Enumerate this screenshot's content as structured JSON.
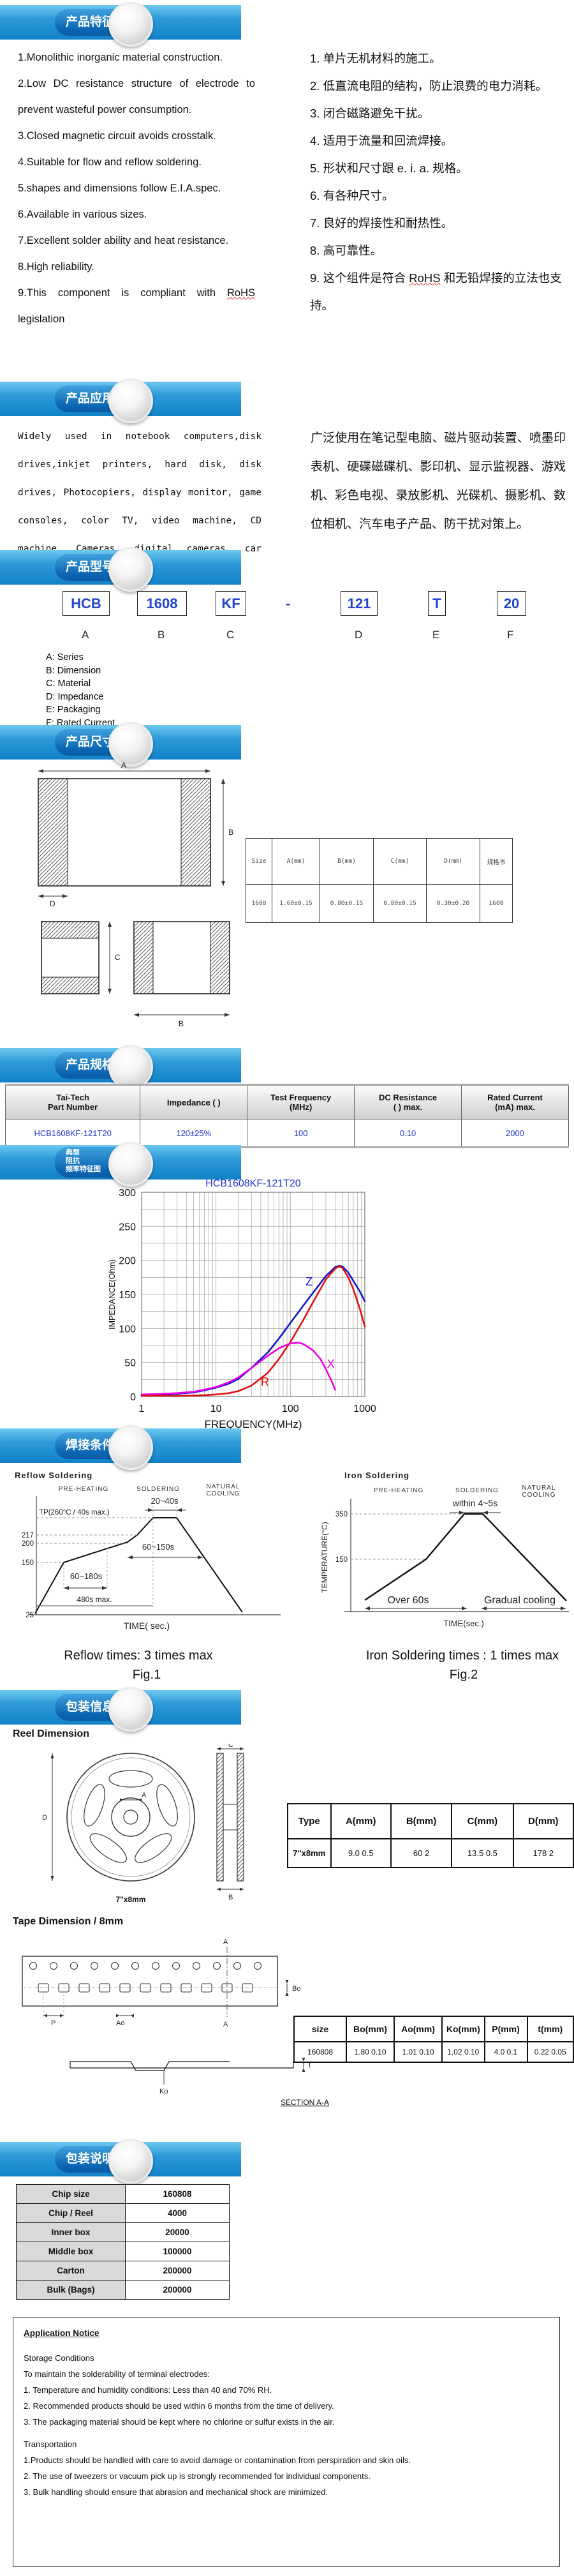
{
  "colors": {
    "strip_blue": "#1182c8",
    "pill_blue": "#0b66b4",
    "value_blue": "#2233cc",
    "curve_z": "#1414cc",
    "curve_r": "#dd1111",
    "curve_x": "#e800e8"
  },
  "sections": {
    "features": {
      "badge": "产品特征",
      "en": [
        "1.Monolithic inorganic material construction.",
        "2.Low DC resistance structure of electrode to prevent wasteful power consumption.",
        "3.Closed magnetic circuit avoids crosstalk.",
        "4.Suitable for flow and reflow soldering.",
        "5.shapes and dimensions follow E.I.A.spec.",
        "6.Available in various sizes.",
        "7.Excellent solder ability and heat resistance.",
        "8.High reliability."
      ],
      "en9": {
        "prefix": "9.This component is compliant with",
        "rohs": "RoHS",
        "suffix": "legislation"
      },
      "zh": [
        "1. 单片无机材料的施工。",
        "2. 低直流电阻的结构，防止浪费的电力消耗。",
        "3. 闭合磁路避免干扰。",
        "4. 适用于流量和回流焊接。",
        "5. 形状和尺寸跟 e. i. a. 规格。",
        "6. 有各种尺寸。",
        "7. 良好的焊接性和耐热性。",
        "8. 高可靠性。"
      ],
      "zh9": {
        "prefix": "9. 这个组件是符合",
        "rohs": "RoHS",
        "suffix": "和无铅焊接的立法也支持。"
      }
    },
    "application": {
      "badge": "产品应用",
      "en": "Widely used in notebook computers,disk drives,inkjet printers, hard disk, disk drives, Photocopiers, display monitor, game consoles, color TV, video machine, CD machine, Cameras, digital cameras, car electronics, anti interference measures.",
      "zh": "广泛使用在笔记型电脑、磁片驱动装置、喷墨印表机、硬碟磁碟机、影印机、显示监视器、游戏机、彩色电视、录放影机、光碟机、摄影机、数位相机、汽车电子产品、防干扰对策上。"
    },
    "part_number": {
      "badge": "产品型号",
      "boxes": [
        "HCB",
        "1608",
        "KF",
        "-",
        "121",
        "T",
        "20"
      ],
      "letters": [
        "A",
        "B",
        "C",
        "D",
        "E",
        "F"
      ],
      "legend": [
        "A: Series",
        "B: Dimension",
        "C: Material",
        "D: Impedance",
        "E: Packaging",
        "F: Rated Current"
      ]
    },
    "dimensions": {
      "badge": "产品尺寸",
      "labels": {
        "a": "A",
        "b": "B",
        "c": "C",
        "d": "D"
      },
      "table": {
        "headers": [
          "Size",
          "A(mm)",
          "B(mm)",
          "C(mm)",
          "D(mm)",
          "规格书"
        ],
        "rows": [
          [
            "1608",
            "1.60±0.15",
            "0.80±0.15",
            "0.80±0.15",
            "0.30±0.20",
            "1608"
          ]
        ]
      }
    },
    "specs": {
      "badge": "产品规格",
      "table": {
        "headers": [
          [
            "Tai-Tech",
            "Part Number"
          ],
          [
            "Impedance (  )",
            ""
          ],
          [
            "Test Frequency",
            "(MHz)"
          ],
          [
            "DC Resistance",
            "(  ) max."
          ],
          [
            "Rated Current",
            "(mA) max."
          ]
        ],
        "rows": [
          [
            "HCB1608KF-121T20",
            "120±25%",
            "100",
            "0.10",
            "2000"
          ]
        ]
      }
    },
    "impedance": {
      "badge_lines": [
        "典型",
        "阻抗",
        "频率特征图"
      ]
    },
    "soldering": {
      "badge": "焊接条件",
      "reflow": {
        "title": "Reflow Soldering",
        "zone1": "PRE-HEATING",
        "zone2": "SOLDERING",
        "zone3a": "NATURAL",
        "zone3b": "COOLING",
        "peak_time": "20~40s",
        "tp": "TP(260°C / 40s max.)",
        "t217": "217",
        "t200": "200",
        "t150": "150",
        "t25": "25",
        "range_mid": "60~150s",
        "range_pre": "60~180s",
        "range_total": "480s max.",
        "xlabel": "TIME( sec.)",
        "caption": "Reflow times: 3 times max",
        "fig": "Fig.1"
      },
      "iron": {
        "title": "Iron Soldering",
        "zone1": "PRE-HEATING",
        "zone2": "SOLDERING",
        "zone3a": "NATURAL",
        "zone3b": "COOLING",
        "peak_time": "within 4~5s",
        "t350": "350",
        "t150": "150",
        "ylabel": "TEMPERATURE(°C)",
        "range_pre": "Over 60s",
        "range_cool": "Gradual  cooling",
        "xlabel": "TIME(sec.)",
        "caption": "Iron Soldering times : 1 times max",
        "fig": "Fig.2"
      }
    },
    "packaging_info": {
      "badge": "包装信息",
      "reel": {
        "heading": "Reel Dimension",
        "caption": "7\"x8mm",
        "dim_a": "A",
        "dim_b": "B",
        "dim_c": "C",
        "dim_d": "D",
        "table": {
          "headers": [
            "Type",
            "A(mm)",
            "B(mm)",
            "C(mm)",
            "D(mm)"
          ],
          "rows": [
            [
              "7\"x8mm",
              "9.0  0.5",
              "60  2",
              "13.5  0.5",
              "178  2"
            ]
          ]
        }
      },
      "tape": {
        "heading": "Tape Dimension / 8mm",
        "section_label": "SECTION A-A",
        "dim_p": "P",
        "dim_ao": "Ao",
        "dim_bo": "Bo",
        "dim_ko": "Ko",
        "dim_t": "t",
        "cut_mark": "A",
        "table": {
          "headers": [
            "size",
            "Bo(mm)",
            "Ao(mm)",
            "Ko(mm)",
            "P(mm)",
            "t(mm)"
          ],
          "rows": [
            [
              "160808",
              "1.80  0.10",
              "1.01  0.10",
              "1.02  0.10",
              "4.0  0.1",
              "0.22  0.05"
            ]
          ]
        }
      }
    },
    "packaging_desc": {
      "badge": "包装说明",
      "chip_table": {
        "rows": [
          [
            "Chip size",
            "160808"
          ],
          [
            "Chip / Reel",
            "4000"
          ],
          [
            "Inner box",
            "20000"
          ],
          [
            "Middle box",
            "100000"
          ],
          [
            "Carton",
            "200000"
          ],
          [
            "Bulk (Bags)",
            "200000"
          ]
        ]
      }
    },
    "notice": {
      "title": "Application Notice",
      "storage_heading": "Storage Conditions",
      "storage_intro": "To maintain the solderability of terminal electrodes:",
      "storage_items": [
        "1. Temperature and humidity conditions: Less than 40  and 70% RH.",
        "2. Recommended products should be used within 6 months from the time of delivery.",
        "3. The packaging material should be kept where no chlorine or sulfur exists in the air."
      ],
      "transport_heading": "Transportation",
      "transport_items": [
        "1.Products should be handled with care to avoid damage or contamination from perspiration and skin oils.",
        "2. The use of tweezers or vacuum pick up is strongly recommended for individual components.",
        "3. Bulk handling should ensure that abrasion and mechanical shock are minimized."
      ]
    }
  },
  "chart_data": [
    {
      "type": "line",
      "title": "HCB1608KF-121T20",
      "xlabel": "FREQUENCY(MHz)",
      "ylabel": "IMPEDANCE(Ohm)",
      "x_scale": "log",
      "xlim": [
        1,
        1000
      ],
      "ylim": [
        0,
        300
      ],
      "x_ticks": [
        1,
        10,
        100,
        1000
      ],
      "y_ticks": [
        0,
        50,
        100,
        150,
        200,
        250,
        300
      ],
      "y_grid_step": 25,
      "grid": true,
      "legend_position": "inline-labels",
      "series": [
        {
          "name": "Z",
          "color": "#1414cc",
          "points": [
            [
              1,
              2
            ],
            [
              2,
              3
            ],
            [
              3,
              4
            ],
            [
              5,
              6
            ],
            [
              7,
              9
            ],
            [
              10,
              13
            ],
            [
              15,
              19
            ],
            [
              20,
              26
            ],
            [
              30,
              42
            ],
            [
              50,
              65
            ],
            [
              70,
              85
            ],
            [
              100,
              108
            ],
            [
              150,
              134
            ],
            [
              200,
              152
            ],
            [
              300,
              177
            ],
            [
              400,
              190
            ],
            [
              450,
              192
            ],
            [
              500,
              191
            ],
            [
              600,
              182
            ],
            [
              700,
              170
            ],
            [
              850,
              155
            ],
            [
              1000,
              140
            ]
          ]
        },
        {
          "name": "R",
          "color": "#dd1111",
          "points": [
            [
              1,
              1
            ],
            [
              2,
              1
            ],
            [
              3,
              1
            ],
            [
              5,
              1.5
            ],
            [
              7,
              2
            ],
            [
              10,
              3
            ],
            [
              15,
              5
            ],
            [
              20,
              8
            ],
            [
              30,
              16
            ],
            [
              50,
              35
            ],
            [
              70,
              55
            ],
            [
              100,
              80
            ],
            [
              150,
              113
            ],
            [
              200,
              138
            ],
            [
              300,
              172
            ],
            [
              400,
              188
            ],
            [
              450,
              191
            ],
            [
              500,
              189
            ],
            [
              600,
              175
            ],
            [
              700,
              158
            ],
            [
              850,
              130
            ],
            [
              1000,
              103
            ]
          ]
        },
        {
          "name": "X",
          "color": "#e800e8",
          "points": [
            [
              1,
              3
            ],
            [
              2,
              4
            ],
            [
              3,
              5
            ],
            [
              5,
              7
            ],
            [
              7,
              10
            ],
            [
              10,
              14
            ],
            [
              15,
              21
            ],
            [
              20,
              28
            ],
            [
              30,
              42
            ],
            [
              50,
              60
            ],
            [
              70,
              71
            ],
            [
              100,
              78
            ],
            [
              130,
              79
            ],
            [
              150,
              77
            ],
            [
              200,
              68
            ],
            [
              250,
              56
            ],
            [
              300,
              40
            ],
            [
              350,
              25
            ],
            [
              400,
              10
            ]
          ]
        }
      ],
      "series_labels": [
        {
          "text": "Z",
          "f": 160,
          "v": 163,
          "color": "#1414cc"
        },
        {
          "text": "R",
          "f": 40,
          "v": 16,
          "color": "#dd1111"
        },
        {
          "text": "X",
          "f": 310,
          "v": 42,
          "color": "#e800e8"
        }
      ]
    },
    {
      "type": "profile-diagram",
      "title": "Reflow Soldering",
      "xlabel": "TIME( sec.)",
      "annotations": [
        "PRE-HEATING",
        "SOLDERING",
        "NATURAL COOLING",
        "20~40s",
        "TP(260°C / 40s max.)",
        "217",
        "200",
        "150",
        "25",
        "60~150s",
        "60~180s",
        "480s max.",
        "Reflow times: 3 times max",
        "Fig.1"
      ]
    },
    {
      "type": "profile-diagram",
      "title": "Iron Soldering",
      "xlabel": "TIME(sec.)",
      "ylabel": "TEMPERATURE(°C)",
      "annotations": [
        "PRE-HEATING",
        "SOLDERING",
        "NATURAL COOLING",
        "within 4~5s",
        "350",
        "150",
        "Over 60s",
        "Gradual cooling",
        "Iron Soldering times : 1 times max",
        "Fig.2"
      ]
    }
  ]
}
